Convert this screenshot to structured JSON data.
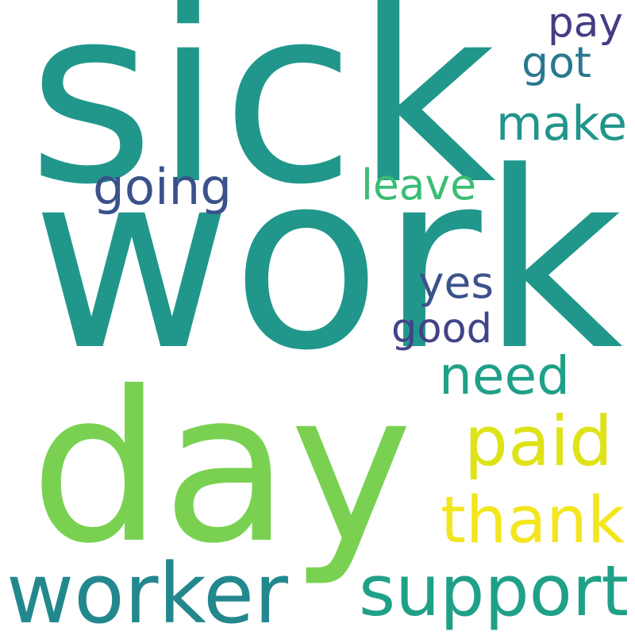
{
  "words": [
    {
      "text": "work",
      "color": "#21978b"
    },
    {
      "text": "sick",
      "color": "#21978b"
    },
    {
      "text": "day",
      "color": "#7ad151"
    },
    {
      "text": "worker",
      "color": "#23888e"
    },
    {
      "text": "support",
      "color": "#1fa187"
    },
    {
      "text": "thank",
      "color": "#f4e61e"
    },
    {
      "text": "paid",
      "color": "#dde318"
    },
    {
      "text": "need",
      "color": "#1fa088"
    },
    {
      "text": "make",
      "color": "#22958b"
    },
    {
      "text": "going",
      "color": "#3b518b"
    },
    {
      "text": "yes",
      "color": "#3b528b"
    },
    {
      "text": "good",
      "color": "#414487"
    },
    {
      "text": "leave",
      "color": "#3cbc75"
    },
    {
      "text": "pay",
      "color": "#433e85"
    },
    {
      "text": "got",
      "color": "#2a788e"
    }
  ]
}
